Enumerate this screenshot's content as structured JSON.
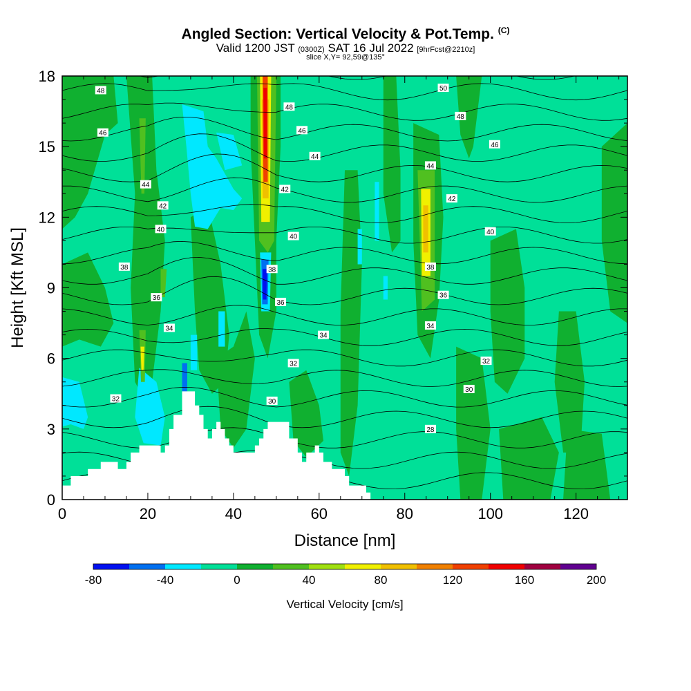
{
  "title": {
    "main": "Angled Section: Vertical Velocity & Pot.Temp.",
    "copyright": "(C)"
  },
  "subtitle": {
    "valid_prefix": "Valid 1200 JST",
    "utc": "(0300Z)",
    "date": "SAT 16 Jul 2022",
    "forecast": "[9hrFcst@2210z]"
  },
  "slice_label": "slice X,Y= 92,59@135°",
  "chart_data": {
    "type": "heatmap",
    "xlabel": "Distance [nm]",
    "ylabel": "Height [Kft MSL]",
    "xlim": [
      0,
      132
    ],
    "ylim": [
      0,
      18
    ],
    "x_ticks": [
      "0",
      "20",
      "40",
      "60",
      "80",
      "100",
      "120"
    ],
    "y_ticks": [
      "0",
      "3",
      "6",
      "9",
      "12",
      "15",
      "18"
    ],
    "colorbar": {
      "label": "Vertical Velocity [cm/s]",
      "range": [
        -80,
        200
      ],
      "tick_labels": [
        "-80",
        "-40",
        "0",
        "40",
        "80",
        "120",
        "160",
        "200"
      ],
      "colors": [
        "#0010f0",
        "#0070f0",
        "#00e8ff",
        "#00e098",
        "#10b030",
        "#50c020",
        "#a0e010",
        "#f0f000",
        "#f0c000",
        "#f08000",
        "#f04000",
        "#f00000",
        "#a00040",
        "#600090"
      ]
    },
    "terrain": [
      [
        0,
        0.6
      ],
      [
        2,
        0.6
      ],
      [
        2,
        1.0
      ],
      [
        6,
        1.0
      ],
      [
        6,
        1.3
      ],
      [
        9,
        1.3
      ],
      [
        9,
        1.6
      ],
      [
        13,
        1.6
      ],
      [
        13,
        1.3
      ],
      [
        15,
        1.3
      ],
      [
        15,
        1.6
      ],
      [
        16,
        1.6
      ],
      [
        16,
        2.0
      ],
      [
        18,
        2.0
      ],
      [
        18,
        2.3
      ],
      [
        23,
        2.3
      ],
      [
        23,
        2.0
      ],
      [
        24,
        2.0
      ],
      [
        24,
        2.3
      ],
      [
        25,
        2.3
      ],
      [
        25,
        3.0
      ],
      [
        26,
        3.0
      ],
      [
        26,
        3.6
      ],
      [
        28,
        3.6
      ],
      [
        28,
        4.6
      ],
      [
        31,
        4.6
      ],
      [
        31,
        4.0
      ],
      [
        32,
        4.0
      ],
      [
        32,
        3.6
      ],
      [
        33,
        3.6
      ],
      [
        33,
        3.0
      ],
      [
        34,
        3.0
      ],
      [
        34,
        2.6
      ],
      [
        35,
        2.6
      ],
      [
        35,
        3.0
      ],
      [
        36,
        3.0
      ],
      [
        36,
        3.3
      ],
      [
        37,
        3.3
      ],
      [
        37,
        3.0
      ],
      [
        38,
        3.0
      ],
      [
        38,
        2.6
      ],
      [
        39,
        2.6
      ],
      [
        39,
        2.3
      ],
      [
        40,
        2.3
      ],
      [
        40,
        2.0
      ],
      [
        45,
        2.0
      ],
      [
        45,
        2.3
      ],
      [
        46,
        2.3
      ],
      [
        46,
        2.6
      ],
      [
        47,
        2.6
      ],
      [
        47,
        3.0
      ],
      [
        48,
        3.0
      ],
      [
        48,
        3.3
      ],
      [
        53,
        3.3
      ],
      [
        53,
        2.6
      ],
      [
        55,
        2.6
      ],
      [
        55,
        2.0
      ],
      [
        56,
        2.0
      ],
      [
        56,
        1.6
      ],
      [
        57,
        1.6
      ],
      [
        57,
        2.0
      ],
      [
        59,
        2.0
      ],
      [
        59,
        2.3
      ],
      [
        60,
        2.3
      ],
      [
        60,
        2.0
      ],
      [
        61,
        2.0
      ],
      [
        61,
        1.6
      ],
      [
        63,
        1.6
      ],
      [
        63,
        1.3
      ],
      [
        66,
        1.3
      ],
      [
        66,
        1.0
      ],
      [
        67,
        1.0
      ],
      [
        67,
        0.6
      ],
      [
        71,
        0.6
      ],
      [
        71,
        0.3
      ],
      [
        72,
        0.3
      ],
      [
        72,
        0
      ]
    ],
    "theta_contour_labels": [
      {
        "x": 9,
        "y": 17.4,
        "t": "48"
      },
      {
        "x": 9.5,
        "y": 15.6,
        "t": "46"
      },
      {
        "x": 19.5,
        "y": 13.4,
        "t": "44"
      },
      {
        "x": 23.5,
        "y": 12.5,
        "t": "42"
      },
      {
        "x": 23,
        "y": 11.5,
        "t": "40"
      },
      {
        "x": 14.5,
        "y": 9.9,
        "t": "38"
      },
      {
        "x": 22,
        "y": 8.6,
        "t": "36"
      },
      {
        "x": 25,
        "y": 7.3,
        "t": "34"
      },
      {
        "x": 12.5,
        "y": 4.3,
        "t": "32"
      },
      {
        "x": 53,
        "y": 16.7,
        "t": "48"
      },
      {
        "x": 56,
        "y": 15.7,
        "t": "46"
      },
      {
        "x": 59,
        "y": 14.6,
        "t": "44"
      },
      {
        "x": 52,
        "y": 13.2,
        "t": "42"
      },
      {
        "x": 54,
        "y": 11.2,
        "t": "40"
      },
      {
        "x": 49,
        "y": 9.8,
        "t": "38"
      },
      {
        "x": 51,
        "y": 8.4,
        "t": "36"
      },
      {
        "x": 61,
        "y": 7.0,
        "t": "34"
      },
      {
        "x": 54,
        "y": 5.8,
        "t": "32"
      },
      {
        "x": 49,
        "y": 4.2,
        "t": "30"
      },
      {
        "x": 89,
        "y": 17.5,
        "t": "50"
      },
      {
        "x": 93,
        "y": 16.3,
        "t": "48"
      },
      {
        "x": 101,
        "y": 15.1,
        "t": "46"
      },
      {
        "x": 86,
        "y": 14.2,
        "t": "44"
      },
      {
        "x": 91,
        "y": 12.8,
        "t": "42"
      },
      {
        "x": 100,
        "y": 11.4,
        "t": "40"
      },
      {
        "x": 86,
        "y": 9.9,
        "t": "38"
      },
      {
        "x": 89,
        "y": 8.7,
        "t": "36"
      },
      {
        "x": 86,
        "y": 7.4,
        "t": "34"
      },
      {
        "x": 99,
        "y": 5.9,
        "t": "32"
      },
      {
        "x": 95,
        "y": 4.7,
        "t": "30"
      },
      {
        "x": 86,
        "y": 3.0,
        "t": "28"
      }
    ]
  }
}
